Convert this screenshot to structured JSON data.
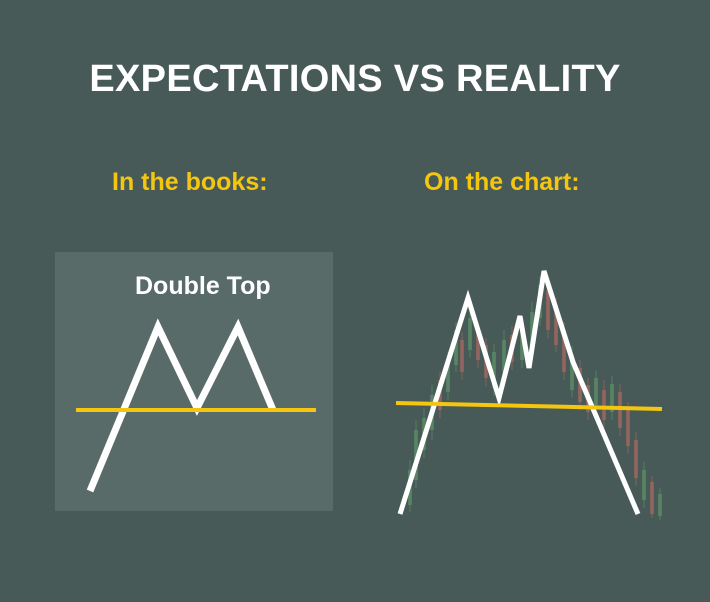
{
  "header": {
    "title": "EXPECTATIONS VS REALITY"
  },
  "left_panel": {
    "heading": "In the books:",
    "pattern_label": "Double Top"
  },
  "right_panel": {
    "heading": "On the chart:"
  },
  "colors": {
    "background": "#475a57",
    "panel": "#586b69",
    "accent_yellow": "#f5c60f",
    "line_white": "#ffffff",
    "candle_green": "#5f9a6a",
    "candle_red": "#b86b62"
  }
}
